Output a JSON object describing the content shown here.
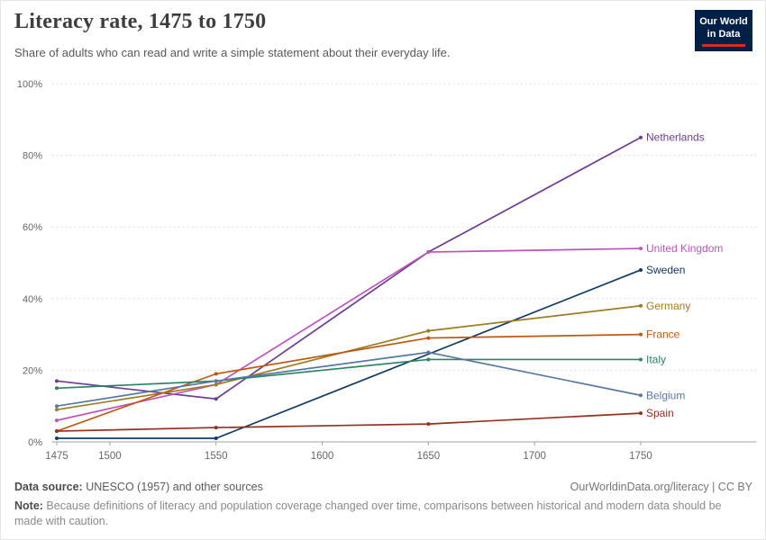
{
  "header": {
    "title": "Literacy rate, 1475 to 1750",
    "subtitle": "Share of adults who can read and write a simple statement about their everyday life.",
    "logo": {
      "line1": "Our World",
      "line2": "in Data",
      "bg_color": "#002147",
      "accent_color": "#dc2723"
    }
  },
  "chart_data": {
    "type": "line",
    "title": "Literacy rate, 1475 to 1750",
    "xlabel": "",
    "ylabel": "",
    "xlim": [
      1475,
      1750
    ],
    "ylim": [
      0,
      100
    ],
    "x_ticks": [
      1475,
      1500,
      1550,
      1600,
      1650,
      1700,
      1750
    ],
    "y_ticks": [
      0,
      20,
      40,
      60,
      80,
      100
    ],
    "y_tick_suffix": "%",
    "grid": "horizontal-dotted",
    "legend": "line-end-labels",
    "colors": {
      "grid": "#d9d9d9",
      "axis": "#a1a1a1",
      "tick_label": "#666666"
    },
    "series": [
      {
        "name": "Netherlands",
        "color": "#6d3e91",
        "points": [
          [
            1475,
            17
          ],
          [
            1550,
            12
          ],
          [
            1650,
            53
          ],
          [
            1750,
            85
          ]
        ]
      },
      {
        "name": "United Kingdom",
        "color": "#bc54bc",
        "points": [
          [
            1475,
            6
          ],
          [
            1550,
            16
          ],
          [
            1650,
            53
          ],
          [
            1750,
            54
          ]
        ]
      },
      {
        "name": "Sweden",
        "color": "#123b63",
        "points": [
          [
            1475,
            1
          ],
          [
            1550,
            1
          ],
          [
            1750,
            48
          ]
        ]
      },
      {
        "name": "Germany",
        "color": "#9c7d23",
        "points": [
          [
            1475,
            9
          ],
          [
            1550,
            16
          ],
          [
            1650,
            31
          ],
          [
            1750,
            38
          ]
        ]
      },
      {
        "name": "France",
        "color": "#be5915",
        "points": [
          [
            1475,
            3
          ],
          [
            1550,
            19
          ],
          [
            1650,
            29
          ],
          [
            1750,
            30
          ]
        ]
      },
      {
        "name": "Italy",
        "color": "#2c8465",
        "points": [
          [
            1475,
            15
          ],
          [
            1550,
            17
          ],
          [
            1650,
            23
          ],
          [
            1750,
            23
          ]
        ]
      },
      {
        "name": "Belgium",
        "color": "#5878a3",
        "points": [
          [
            1475,
            10
          ],
          [
            1550,
            17
          ],
          [
            1650,
            25
          ],
          [
            1750,
            13
          ]
        ]
      },
      {
        "name": "Spain",
        "color": "#94301f",
        "points": [
          [
            1475,
            3
          ],
          [
            1550,
            4
          ],
          [
            1650,
            5
          ],
          [
            1750,
            8
          ]
        ]
      }
    ]
  },
  "footer": {
    "source_label": "Data source:",
    "source_text": " UNESCO (1957) and other sources",
    "rights": "OurWorldinData.org/literacy | CC BY",
    "note_label": "Note:",
    "note_text": " Because definitions of literacy and population coverage changed over time, comparisons between historical and modern data should be made with caution."
  }
}
